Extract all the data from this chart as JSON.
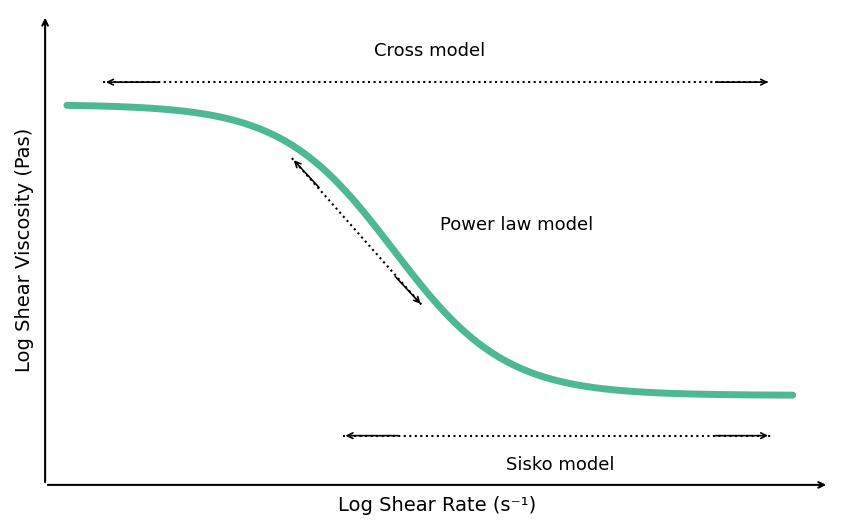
{
  "xlabel": "Log Shear Rate (s⁻¹)",
  "ylabel": "Log Shear Viscosity (Pas)",
  "curve_color": "#4db891",
  "curve_linewidth": 5,
  "background_color": "#ffffff",
  "cross_model_label": "Cross model",
  "power_law_label": "Power law model",
  "sisko_label": "Sisko model",
  "font_size_labels": 13,
  "font_size_axis": 14
}
